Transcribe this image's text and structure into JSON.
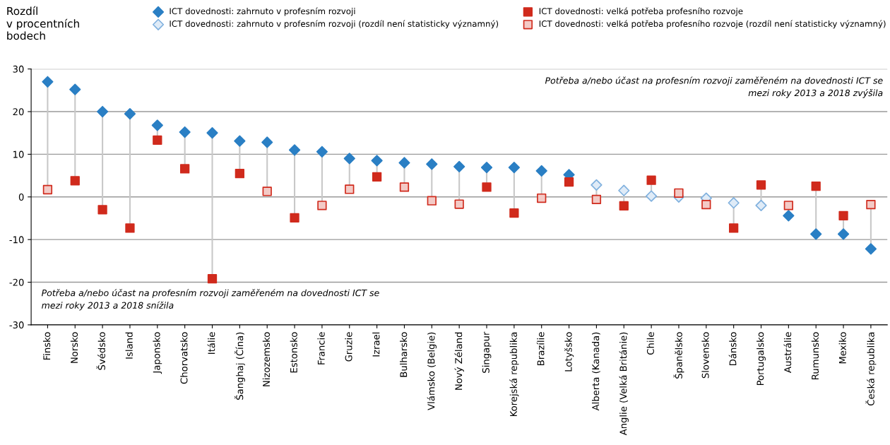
{
  "chart_data": {
    "type": "scatter",
    "ylabel": "Rozdíl\nv procentních\nbodech",
    "categories": [
      "Finsko",
      "Norsko",
      "Švédsko",
      "Island",
      "Japonsko",
      "Chorvatsko",
      "Itálie",
      "Šanghaj (Čína)",
      "Nizozemsko",
      "Estonsko",
      "Francie",
      "Gruzie",
      "Izrael",
      "Bulharsko",
      "Vlámsko (Belgie)",
      "Nový Zéland",
      "Singapur",
      "Korejská republika",
      "Brazílie",
      "Lotyšsko",
      "Alberta (Kanada)",
      "Anglie (Velká Británie)",
      "Chile",
      "Španělsko",
      "Slovensko",
      "Dánsko",
      "Portugalsko",
      "Austrálie",
      "Rumunsko",
      "Mexiko",
      "Česká republika"
    ],
    "series": [
      {
        "name": "ICT dovednosti: zahrnuto v profesním rozvoji",
        "color": "#2a7fc4",
        "marker": "diamond",
        "values": [
          27,
          25.2,
          20,
          19.5,
          16.8,
          15.2,
          15,
          13.1,
          12.8,
          11,
          10.6,
          9,
          8.5,
          8,
          7.7,
          7.1,
          6.9,
          6.9,
          6.1,
          5.2,
          null,
          null,
          null,
          null,
          null,
          null,
          null,
          -4.4,
          -8.7,
          -8.7,
          -12.2
        ]
      },
      {
        "name": "ICT dovednosti: velká potřeba profesního rozvoje",
        "color": "#d02a1c",
        "marker": "square",
        "values": [
          null,
          3.8,
          -3,
          -7.3,
          13.3,
          6.6,
          -19.2,
          5.5,
          null,
          -4.9,
          null,
          null,
          4.7,
          null,
          null,
          null,
          2.3,
          -3.8,
          null,
          3.5,
          null,
          -2.1,
          3.9,
          null,
          null,
          -7.3,
          2.8,
          null,
          2.5,
          -4.4,
          null
        ]
      },
      {
        "name": "ICT dovednosti: zahrnuto v profesním rozvoji (rozdíl není statisticky významný)",
        "color": "#7fb0de",
        "marker": "diamond",
        "values": [
          null,
          null,
          null,
          null,
          null,
          null,
          null,
          null,
          null,
          null,
          null,
          null,
          null,
          null,
          null,
          null,
          null,
          null,
          null,
          null,
          2.8,
          1.5,
          0.2,
          0,
          -0.3,
          -1.4,
          -2,
          null,
          null,
          null,
          null
        ]
      },
      {
        "name": "ICT dovednosti: velká potřeba profesního rozvoje (rozdíl není statisticky významný)",
        "color": "#d02a1c",
        "marker": "square",
        "values": [
          1.7,
          null,
          null,
          null,
          null,
          null,
          null,
          null,
          1.3,
          null,
          -2,
          1.8,
          null,
          2.3,
          -0.9,
          -1.7,
          null,
          null,
          -0.3,
          null,
          -0.6,
          null,
          null,
          0.9,
          -1.8,
          null,
          null,
          -2,
          null,
          null,
          -1.8
        ]
      }
    ],
    "ylim": [
      -30,
      30
    ],
    "yticks": [
      -30,
      -20,
      -10,
      0,
      10,
      20,
      30
    ],
    "grid": "y",
    "legend": "top",
    "annotations": [
      "Potřeba a/nebo účast na profesním rozvoji zaměřeném na dovednosti ICT se\nmezi roky 2013 a 2018 zvýšila",
      "Potřeba a/nebo účast na profesním rozvoji zaměřeném na dovednosti ICT se\nmezi roky 2013 a 2018 snížila"
    ]
  }
}
